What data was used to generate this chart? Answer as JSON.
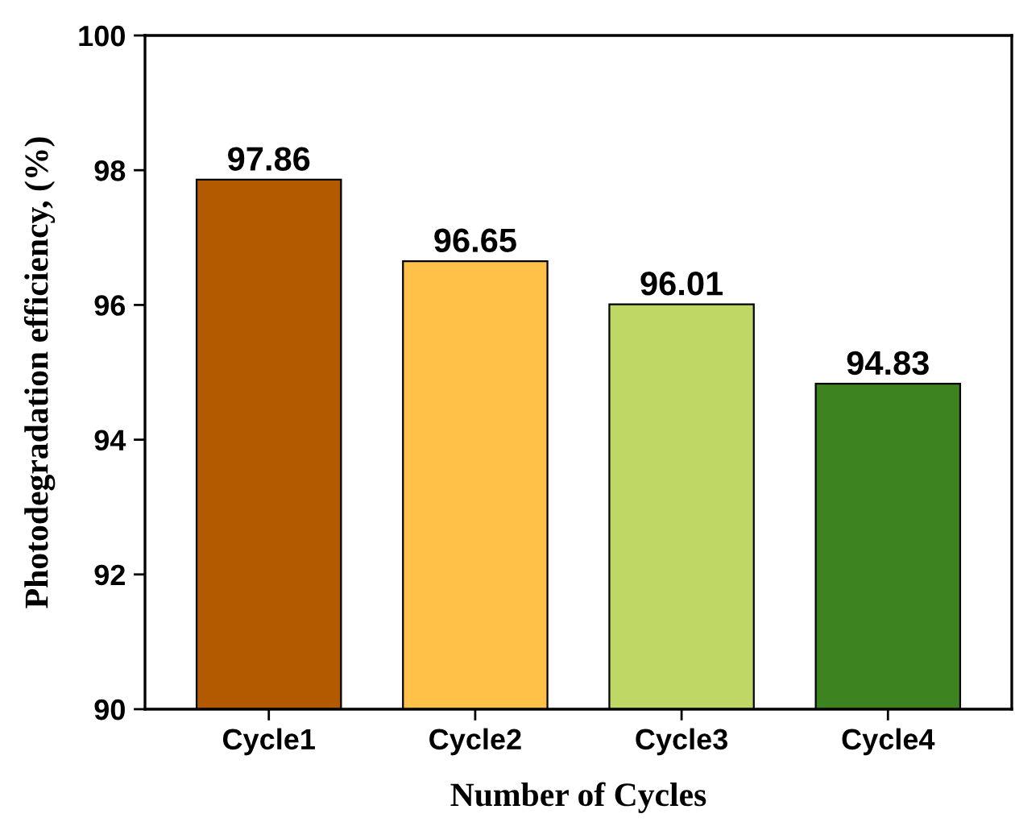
{
  "chart_data": {
    "type": "bar",
    "xlabel": "Number of Cycles",
    "ylabel": "Photodegradation efficiency, (%)",
    "categories": [
      "Cycle1",
      "Cycle2",
      "Cycle3",
      "Cycle4"
    ],
    "values": [
      97.86,
      96.65,
      96.01,
      94.83
    ],
    "colors": [
      "#b35900",
      "#ffc148",
      "#bfd865",
      "#3d8420"
    ],
    "ylim": [
      90,
      100
    ],
    "yticks": [
      90,
      92,
      94,
      96,
      98,
      100
    ],
    "data_labels": true,
    "grid": false,
    "legend": false
  }
}
